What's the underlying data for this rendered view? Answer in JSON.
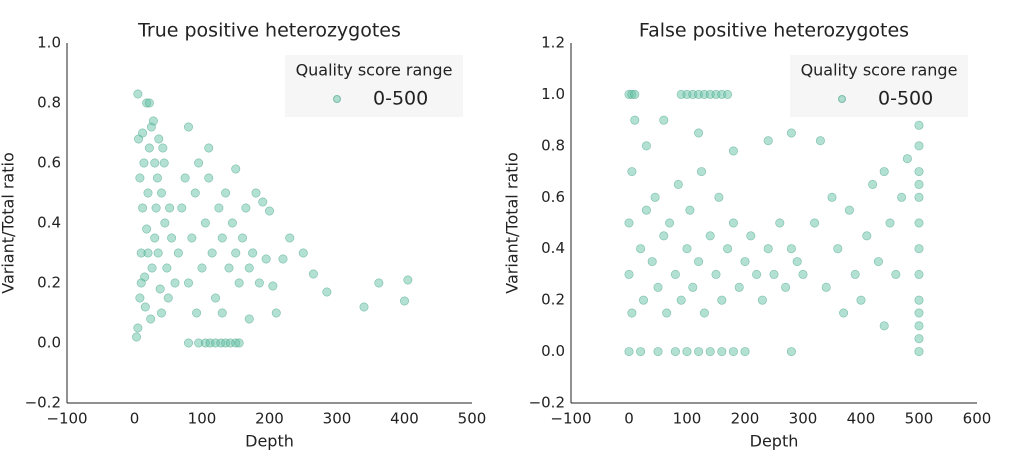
{
  "chart_data": [
    {
      "type": "scatter",
      "title": "True positive heterozygotes",
      "xlabel": "Depth",
      "ylabel": "Variant/Total ratio",
      "legend_title": "Quality score range",
      "legend": "upper right",
      "grid": false,
      "xlim": [
        -100,
        500
      ],
      "xticks": [
        {
          "value": -100,
          "label": "−100"
        },
        0,
        100,
        200,
        300,
        400,
        500
      ],
      "ylim": [
        -0.2,
        1.0
      ],
      "yticks": [
        {
          "value": -0.2,
          "label": "−0.2"
        },
        {
          "value": 0,
          "label": "0.0"
        },
        0.2,
        0.4,
        0.6,
        0.8,
        {
          "value": 1,
          "label": "1.0"
        }
      ],
      "x": [
        5,
        8,
        10,
        12,
        14,
        6,
        5,
        15,
        18,
        20,
        22,
        25,
        28,
        30,
        32,
        35,
        38,
        40,
        24,
        16,
        26,
        30,
        34,
        40,
        45,
        48,
        50,
        20,
        10,
        8,
        12,
        18,
        22,
        42,
        55,
        60,
        3,
        36,
        44,
        52,
        65,
        70,
        75,
        80,
        85,
        90,
        95,
        100,
        105,
        110,
        115,
        120,
        125,
        130,
        135,
        140,
        145,
        150,
        155,
        160,
        165,
        170,
        175,
        180,
        185,
        190,
        200,
        110,
        80,
        92,
        130,
        150,
        195,
        205,
        170,
        80,
        95,
        105,
        112,
        120,
        128,
        135,
        142,
        150,
        155,
        230,
        250,
        265,
        285,
        340,
        362,
        400,
        405,
        220,
        210
      ],
      "series": [
        {
          "name": "0-500",
          "color": "#66c2a5",
          "values": [
            0.05,
            0.15,
            0.3,
            0.45,
            0.6,
            0.68,
            0.83,
            0.22,
            0.38,
            0.5,
            0.65,
            0.72,
            0.74,
            0.6,
            0.45,
            0.3,
            0.18,
            0.1,
            0.08,
            0.12,
            0.25,
            0.35,
            0.55,
            0.5,
            0.4,
            0.25,
            0.15,
            0.3,
            0.2,
            0.55,
            0.7,
            0.8,
            0.8,
            0.65,
            0.35,
            0.2,
            0.02,
            0.68,
            0.6,
            0.45,
            0.3,
            0.45,
            0.55,
            0.2,
            0.35,
            0.5,
            0.6,
            0.25,
            0.4,
            0.55,
            0.3,
            0.15,
            0.45,
            0.35,
            0.5,
            0.25,
            0.4,
            0.3,
            0.2,
            0.35,
            0.45,
            0.25,
            0.3,
            0.5,
            0.2,
            0.47,
            0.44,
            0.65,
            0.72,
            0.1,
            0.1,
            0.58,
            0.28,
            0.19,
            0.08,
            0,
            0,
            0,
            0,
            0,
            0,
            0,
            0,
            0,
            0,
            0.35,
            0.3,
            0.23,
            0.17,
            0.12,
            0.2,
            0.14,
            0.21,
            0.28,
            0.1
          ]
        }
      ]
    },
    {
      "type": "scatter",
      "title": "False positive heterozygotes",
      "xlabel": "Depth",
      "ylabel": "Variant/Total ratio",
      "legend_title": "Quality score range",
      "legend": "upper right",
      "grid": false,
      "xlim": [
        -100,
        600
      ],
      "xticks": [
        {
          "value": -100,
          "label": "−100"
        },
        0,
        100,
        200,
        300,
        400,
        500,
        600
      ],
      "ylim": [
        -0.2,
        1.2
      ],
      "yticks": [
        {
          "value": -0.2,
          "label": "−0.2"
        },
        {
          "value": 0,
          "label": "0.0"
        },
        0.2,
        0.4,
        0.6,
        0.8,
        {
          "value": 1,
          "label": "1.0"
        },
        {
          "value": 1.2,
          "label": "1.2"
        }
      ],
      "x": [
        0,
        5,
        10,
        0,
        0,
        0,
        5,
        5,
        10,
        20,
        25,
        30,
        40,
        45,
        50,
        60,
        65,
        70,
        80,
        85,
        90,
        100,
        105,
        110,
        120,
        125,
        130,
        140,
        150,
        155,
        160,
        170,
        180,
        190,
        200,
        210,
        220,
        230,
        240,
        250,
        260,
        270,
        280,
        290,
        300,
        30,
        60,
        120,
        180,
        240,
        280,
        90,
        100,
        110,
        120,
        130,
        140,
        150,
        160,
        170,
        80,
        100,
        120,
        140,
        160,
        180,
        200,
        20,
        50,
        280,
        320,
        340,
        350,
        360,
        370,
        380,
        390,
        400,
        410,
        420,
        430,
        440,
        450,
        460,
        470,
        480,
        330,
        440,
        500,
        500,
        500,
        500,
        500,
        500,
        500,
        500,
        500,
        500,
        500,
        500,
        500
      ],
      "series": [
        {
          "name": "0-500",
          "color": "#66c2a5",
          "values": [
            1,
            1,
            1,
            0,
            0.3,
            0.5,
            0.7,
            0.15,
            0.9,
            0.4,
            0.2,
            0.55,
            0.35,
            0.6,
            0.25,
            0.45,
            0.15,
            0.5,
            0.3,
            0.65,
            0.2,
            0.4,
            0.55,
            0.25,
            0.35,
            0.7,
            0.15,
            0.45,
            0.3,
            0.6,
            0.2,
            0.4,
            0.5,
            0.25,
            0.35,
            0.45,
            0.3,
            0.2,
            0.4,
            0.3,
            0.5,
            0.25,
            0.4,
            0.35,
            0.3,
            0.8,
            0.9,
            0.85,
            0.78,
            0.82,
            0.85,
            1,
            1,
            1,
            1,
            1,
            1,
            1,
            1,
            1,
            0,
            0,
            0,
            0,
            0,
            0,
            0,
            0,
            0,
            0,
            0.5,
            0.25,
            0.6,
            0.4,
            0.15,
            0.55,
            0.3,
            0.2,
            0.45,
            0.65,
            0.35,
            0.1,
            0.5,
            0.3,
            0.6,
            0.75,
            0.82,
            0.7,
            0,
            0.1,
            0.2,
            0.3,
            0.4,
            0.5,
            0.6,
            0.7,
            0.8,
            0.88,
            0.05,
            0.15,
            0.65
          ]
        }
      ]
    }
  ]
}
